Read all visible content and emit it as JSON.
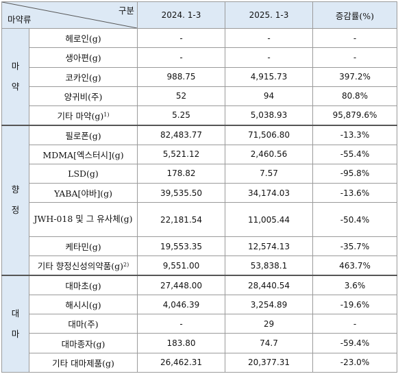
{
  "header": {
    "corner_top": "구분",
    "corner_bottom": "마약류",
    "col1": "2024. 1-3",
    "col2": "2025. 1-3",
    "col3": "증감률(%)"
  },
  "groups": [
    {
      "chars": [
        "마",
        "약"
      ],
      "rows": [
        {
          "name": "헤로인(g)",
          "v1": "-",
          "v2": "-",
          "v3": "-"
        },
        {
          "name": "생아편(g)",
          "v1": "-",
          "v2": "-",
          "v3": "-"
        },
        {
          "name": "코카인(g)",
          "v1": "988.75",
          "v2": "4,915.73",
          "v3": "397.2%"
        },
        {
          "name": "양귀비(주)",
          "v1": "52",
          "v2": "94",
          "v3": "80.8%"
        },
        {
          "name": "기타 마약(g)",
          "sup": "1)",
          "v1": "5.25",
          "v2": "5,038.93",
          "v3": "95,879.6%"
        }
      ]
    },
    {
      "chars": [
        "향",
        "정"
      ],
      "rows": [
        {
          "name": "필로폰(g)",
          "v1": "82,483.77",
          "v2": "71,506.80",
          "v3": "-13.3%"
        },
        {
          "name": "MDMA[엑스터시](g)",
          "v1": "5,521.12",
          "v2": "2,460.56",
          "v3": "-55.4%"
        },
        {
          "name": "LSD(g)",
          "v1": "178.82",
          "v2": "7.57",
          "v3": "-95.8%"
        },
        {
          "name": "YABA[야바](g)",
          "v1": "39,535.50",
          "v2": "34,174.03",
          "v3": "-13.6%"
        },
        {
          "name": "JWH-018 및 그 유사체(g)",
          "v1": "22,181.54",
          "v2": "11,005.44",
          "v3": "-50.4%",
          "wrap": true
        },
        {
          "name": "케타민(g)",
          "v1": "19,553.35",
          "v2": "12,574.13",
          "v3": "-35.7%"
        },
        {
          "name": "기타 향정신성의약품(g)",
          "sup": "2)",
          "v1": "9,551.00",
          "v2": "53,838.1",
          "v3": "463.7%"
        }
      ]
    },
    {
      "chars": [
        "대",
        "마"
      ],
      "rows": [
        {
          "name": "대마초(g)",
          "v1": "27,448.00",
          "v2": "28,440.54",
          "v3": "3.6%"
        },
        {
          "name": "해시시(g)",
          "v1": "4,046.39",
          "v2": "3,254.89",
          "v3": "-19.6%"
        },
        {
          "name": "대마(주)",
          "v1": "-",
          "v2": "29",
          "v3": "-"
        },
        {
          "name": "대마종자(g)",
          "v1": "183.80",
          "v2": "74.7",
          "v3": "-59.4%"
        },
        {
          "name": "기타 대마제품(g)",
          "v1": "26,462.31",
          "v2": "20,377.31",
          "v3": "-23.0%"
        }
      ]
    }
  ]
}
